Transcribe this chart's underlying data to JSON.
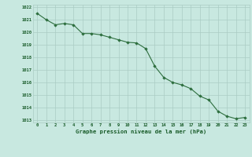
{
  "x": [
    0,
    1,
    2,
    3,
    4,
    5,
    6,
    7,
    8,
    9,
    10,
    11,
    12,
    13,
    14,
    15,
    16,
    17,
    18,
    19,
    20,
    21,
    22,
    23
  ],
  "y": [
    1021.5,
    1021.0,
    1020.6,
    1020.7,
    1020.6,
    1019.9,
    1019.9,
    1019.8,
    1019.6,
    1019.4,
    1019.2,
    1019.15,
    1018.7,
    1017.3,
    1016.4,
    1016.0,
    1015.8,
    1015.5,
    1014.9,
    1014.6,
    1013.7,
    1013.3,
    1013.1,
    1013.2
  ],
  "ylim": [
    1012.8,
    1022.2
  ],
  "yticks": [
    1013,
    1014,
    1015,
    1016,
    1017,
    1018,
    1019,
    1020,
    1021,
    1022
  ],
  "xlim": [
    -0.5,
    23.5
  ],
  "xticks": [
    0,
    1,
    2,
    3,
    4,
    5,
    6,
    7,
    8,
    9,
    10,
    11,
    12,
    13,
    14,
    15,
    16,
    17,
    18,
    19,
    20,
    21,
    22,
    23
  ],
  "xlabel": "Graphe pression niveau de la mer (hPa)",
  "line_color": "#2d6e3e",
  "marker_color": "#2d6e3e",
  "bg_color": "#c8e8e0",
  "grid_color": "#aaccc4",
  "text_color": "#1a5c2a",
  "title": ""
}
